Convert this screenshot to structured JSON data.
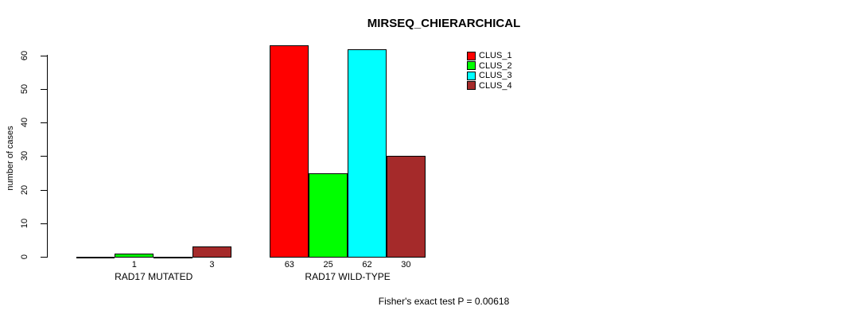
{
  "chart_data": {
    "type": "bar",
    "title": "MIRSEQ_CHIERARCHICAL",
    "ylabel": "number of cases",
    "xlabel": "",
    "ylim": [
      0,
      60
    ],
    "yticks": [
      0,
      10,
      20,
      30,
      40,
      50,
      60
    ],
    "grid": false,
    "legend_position": "top-right",
    "series": [
      {
        "name": "CLUS_1",
        "color": "#FF0000",
        "values": [
          0,
          63
        ]
      },
      {
        "name": "CLUS_2",
        "color": "#00FF00",
        "values": [
          1,
          25
        ]
      },
      {
        "name": "CLUS_3",
        "color": "#00FFFF",
        "values": [
          0,
          62
        ]
      },
      {
        "name": "CLUS_4",
        "color": "#A52A2A",
        "values": [
          3,
          30
        ]
      }
    ],
    "categories": [
      "RAD17 MUTATED",
      "RAD17 WILD-TYPE"
    ],
    "groups": [
      {
        "label": "RAD17 MUTATED",
        "values": [
          0,
          1,
          0,
          3
        ],
        "bar_labels": [
          "",
          "1",
          "",
          "3"
        ]
      },
      {
        "label": "RAD17 WILD-TYPE",
        "values": [
          63,
          25,
          62,
          30
        ],
        "bar_labels": [
          "63",
          "25",
          "62",
          "30"
        ]
      }
    ],
    "footnote": "Fisher's exact test P = 0.00618"
  }
}
